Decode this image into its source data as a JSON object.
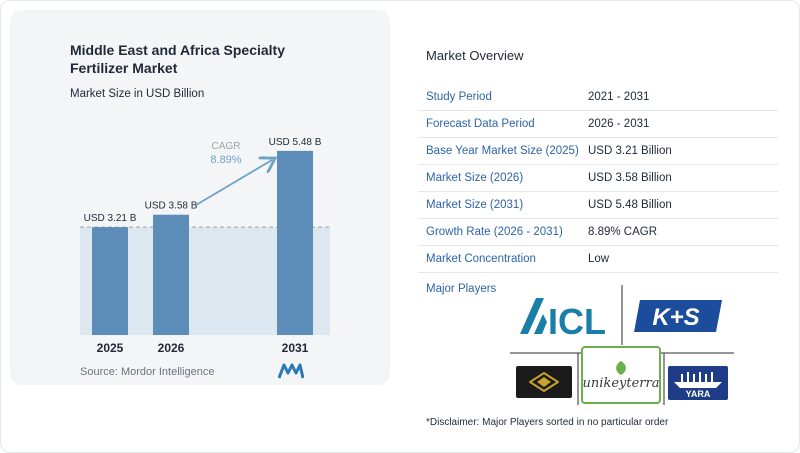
{
  "chart_data": {
    "type": "bar",
    "title": "Middle East and Africa Specialty Fertilizer Market",
    "subtitle": "Market Size in USD Billion",
    "categories": [
      "2025",
      "2026",
      "2031"
    ],
    "values": [
      3.21,
      3.58,
      5.48
    ],
    "value_labels": [
      "USD 3.21 B",
      "USD 3.58 B",
      "USD 5.48 B"
    ],
    "cagr_label": "CAGR",
    "cagr_value": "8.89%",
    "source": "Source: Mordor Intelligence",
    "colors": {
      "bar": "#5b8db8",
      "bar_top": "#7aa7cc",
      "band": "#dde7f0",
      "arrow": "#6fa3c6",
      "cagr_text": "#6fa3c6"
    }
  },
  "overview": {
    "title": "Market Overview",
    "rows": [
      {
        "label": "Study Period",
        "value": "2021 - 2031"
      },
      {
        "label": "Forecast Data Period",
        "value": "2026 - 2031"
      },
      {
        "label": "Base Year Market Size (2025)",
        "value": "USD 3.21 Billion"
      },
      {
        "label": "Market Size (2026)",
        "value": "USD 3.58 Billion"
      },
      {
        "label": "Market Size (2031)",
        "value": "USD 5.48 Billion"
      },
      {
        "label": "Growth Rate (2026 - 2031)",
        "value": "8.89% CAGR"
      },
      {
        "label": "Market Concentration",
        "value": "Low"
      }
    ]
  },
  "players": {
    "label": "Major Players",
    "logos": [
      "ICL",
      "K+S",
      "unikeyterra",
      "YARA"
    ],
    "icl_text": "ICL",
    "ks_text": "K+S",
    "unikeyterra_text": "unikeyterra",
    "yara_text": "YARA",
    "colors": {
      "icl": "#1a7fa8",
      "ks": "#1c4d9c",
      "yara": "#1f3c88",
      "unikey": "#6ab04c"
    }
  },
  "disclaimer": "*Disclaimer: Major Players sorted in no particular order"
}
